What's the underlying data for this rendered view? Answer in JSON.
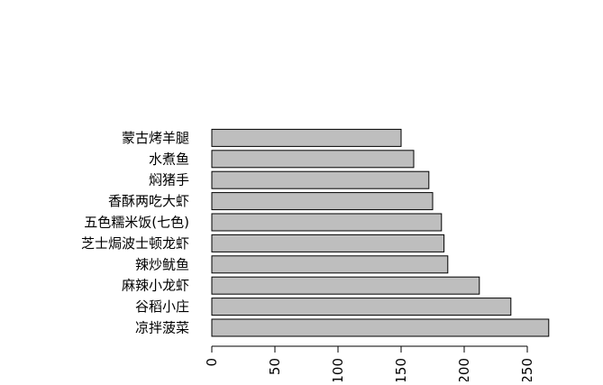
{
  "chart_data": {
    "type": "bar",
    "orientation": "horizontal",
    "categories": [
      "凉拌菠菜",
      "谷稻小庄",
      "麻辣小龙虾",
      "辣炒鱿鱼",
      "芝士焗波士顿龙虾",
      "五色糯米饭(七色)",
      "香酥两吃大虾",
      "焖猪手",
      "水煮鱼",
      "蒙古烤羊腿"
    ],
    "values": [
      267,
      237,
      212,
      187,
      184,
      182,
      175,
      172,
      160,
      150
    ],
    "xticks": [
      "0",
      "50",
      "100",
      "150",
      "200",
      "250"
    ],
    "xlim": [
      0,
      268
    ],
    "title": "",
    "xlabel": "",
    "ylabel": "",
    "grid": false,
    "legend": "none",
    "colors": {
      "bar_fill": "#bebebe",
      "bar_stroke": "#000000",
      "axis": "#000000"
    }
  }
}
